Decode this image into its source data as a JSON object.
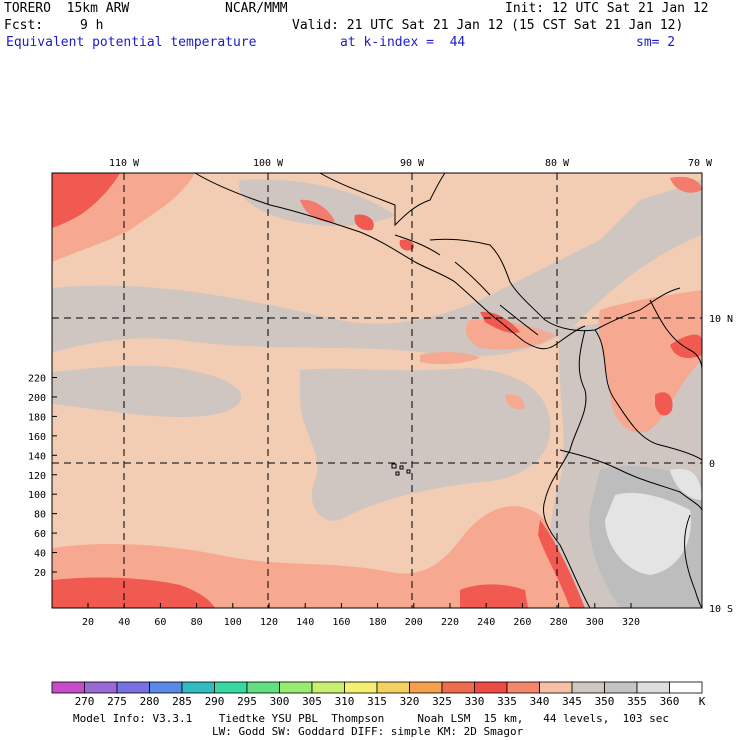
{
  "header": {
    "model": "TORERO  15km ARW",
    "center": "NCAR/MMM",
    "init": "Init: 12 UTC Sat 21 Jan 12",
    "fcst_label": "Fcst:",
    "fcst_value": "9 h",
    "valid": "Valid: 21 UTC Sat 21 Jan 12 (15 CST Sat 21 Jan 12)",
    "field": "Equivalent potential temperature",
    "level": "at k-index =  44",
    "smoothing": "sm= 2"
  },
  "map": {
    "lon_labels": [
      "110 W",
      "100 W",
      "90 W",
      "80 W",
      "70 W"
    ],
    "lat_labels": [
      "10 N",
      "0",
      "10 S"
    ],
    "y_ticks": [
      "20",
      "40",
      "60",
      "80",
      "100",
      "120",
      "140",
      "160",
      "180",
      "200",
      "220"
    ],
    "x_ticks": [
      "20",
      "40",
      "60",
      "80",
      "100",
      "120",
      "140",
      "160",
      "180",
      "200",
      "220",
      "240",
      "260",
      "280",
      "300",
      "320"
    ],
    "field_colors": {
      "c330": "#f05a50",
      "c335": "#f47c6e",
      "c340": "#f6a890",
      "c345": "#f2cdb4",
      "c350": "#cfc6c2",
      "c355": "#bdbdbd",
      "c360": "#e4e4e4"
    }
  },
  "colorbar": {
    "labels": [
      "270",
      "275",
      "280",
      "285",
      "290",
      "295",
      "300",
      "305",
      "310",
      "315",
      "320",
      "325",
      "330",
      "335",
      "340",
      "345",
      "350",
      "355",
      "360"
    ],
    "unit": "K",
    "colors": [
      "#c84cc8",
      "#9a6ad4",
      "#7a70e6",
      "#5a8ae6",
      "#30bcc0",
      "#38d8a0",
      "#60e080",
      "#98ec70",
      "#c8f070",
      "#f4f070",
      "#f4d060",
      "#f4a050",
      "#f06a4e",
      "#f04a44",
      "#f4866e",
      "#f6c0a6",
      "#cfc6c2",
      "#c4c4c4",
      "#dedede",
      "#ffffff"
    ]
  },
  "footer": {
    "line1": "Model Info: V3.3.1    Tiedtke YSU PBL  Thompson     Noah LSM  15 km,   44 levels,  103 sec",
    "line2": "LW: Godd SW: Goddard DIFF: simple KM: 2D Smagor"
  }
}
